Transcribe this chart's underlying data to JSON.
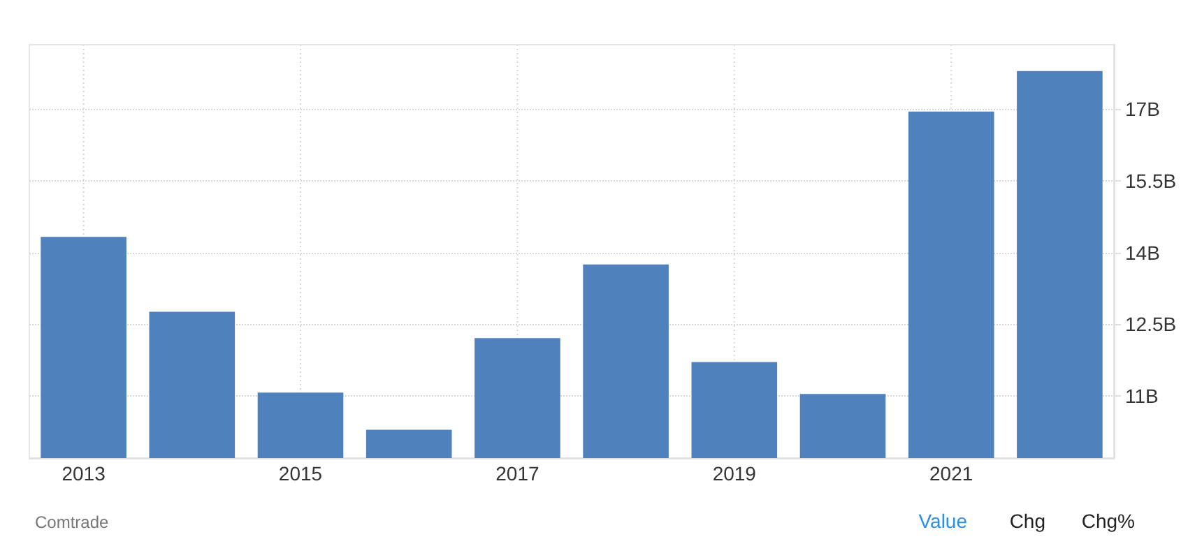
{
  "chart_data": {
    "type": "bar",
    "categories": [
      "2013",
      null,
      "2015",
      null,
      "2017",
      null,
      "2019",
      null,
      "2021",
      null
    ],
    "values": [
      14.33,
      12.76,
      11.07,
      10.29,
      12.21,
      13.75,
      11.71,
      11.04,
      16.95,
      17.8
    ],
    "color": "#4f81bd",
    "ylim": [
      9.7,
      18.35
    ],
    "yticks": [
      {
        "value": 11,
        "label": "11B"
      },
      {
        "value": 12.5,
        "label": "12.5B"
      },
      {
        "value": 14,
        "label": "14B"
      },
      {
        "value": 15.5,
        "label": "15.5B"
      },
      {
        "value": 17,
        "label": "17B"
      }
    ],
    "grid": true,
    "annotations": [
      "Comtrade",
      "Value",
      "Chg",
      "Chg%"
    ]
  }
}
